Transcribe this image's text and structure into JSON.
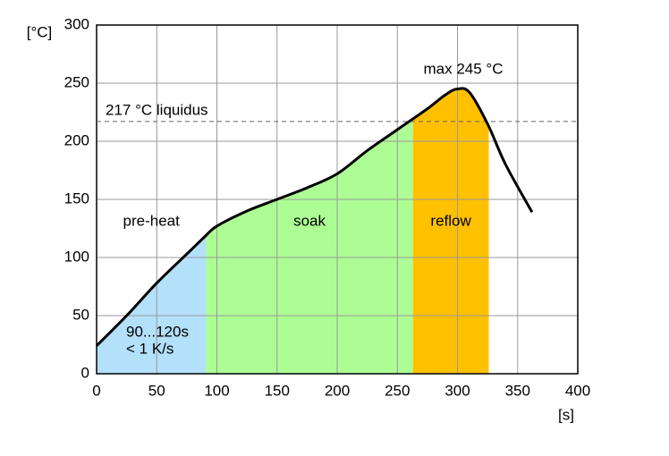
{
  "chart_data": {
    "type": "line",
    "y_label": "[°C]",
    "x_label": "[s]",
    "x": [
      0,
      25,
      50,
      75,
      90,
      100,
      125,
      150,
      175,
      200,
      225,
      250,
      275,
      290,
      300,
      310,
      325,
      340,
      362
    ],
    "series": [
      {
        "color": "#000000",
        "values": [
          24,
          50,
          78,
          103,
          118,
          127,
          140,
          150,
          160,
          172,
          192,
          210,
          228,
          240,
          245,
          242,
          215,
          180,
          139
        ]
      }
    ],
    "xlim": [
      0,
      400
    ],
    "xticks": [
      0,
      50,
      100,
      150,
      200,
      250,
      300,
      350,
      400
    ],
    "ylim": [
      0,
      300
    ],
    "yticks": [
      0,
      50,
      100,
      150,
      200,
      250,
      300
    ],
    "grid": true,
    "zones": [
      {
        "label": "pre-heat",
        "start": 0,
        "end": 91,
        "color": "#b3e0fa",
        "note": [
          "90...120s",
          "< 1 K/s"
        ]
      },
      {
        "label": "soak",
        "start": 91,
        "end": 263,
        "color": "#adfd95"
      },
      {
        "label": "reflow",
        "start": 263,
        "end": 326,
        "color": "#ffc000"
      }
    ],
    "liquidus": {
      "value": 217,
      "label": "217 °C liquidus"
    },
    "peak_label": "max 245 °C"
  }
}
